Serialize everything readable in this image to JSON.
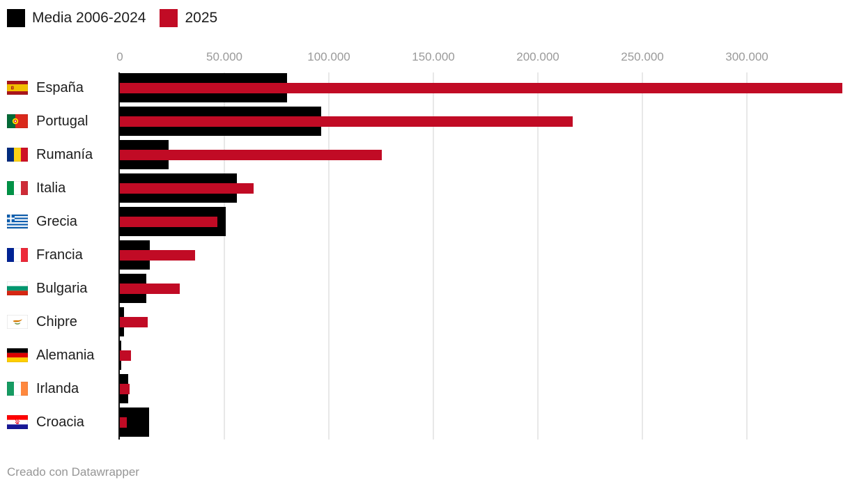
{
  "legend": {
    "items": [
      {
        "label": "Media 2006-2024",
        "color": "#000000"
      },
      {
        "label": "2025",
        "color": "#c10b25"
      }
    ]
  },
  "footer": {
    "credit": "Creado con Datawrapper"
  },
  "chart_data": {
    "type": "bar",
    "orientation": "horizontal",
    "categories": [
      "España",
      "Portugal",
      "Rumanía",
      "Italia",
      "Grecia",
      "Francia",
      "Bulgaria",
      "Chipre",
      "Alemania",
      "Irlanda",
      "Croacia"
    ],
    "flag_icons": [
      "flag-espana-icon",
      "flag-portugal-icon",
      "flag-rumania-icon",
      "flag-italia-icon",
      "flag-grecia-icon",
      "flag-francia-icon",
      "flag-bulgaria-icon",
      "flag-chipre-icon",
      "flag-alemania-icon",
      "flag-irlanda-icon",
      "flag-croacia-icon"
    ],
    "series": [
      {
        "name": "Media 2006-2024",
        "color": "#000000",
        "values": [
          80000,
          96300,
          23300,
          56000,
          50700,
          14300,
          12500,
          2100,
          500,
          4000,
          14000
        ]
      },
      {
        "name": "2025",
        "color": "#c10b25",
        "values": [
          345500,
          216600,
          125300,
          64000,
          46500,
          36000,
          28500,
          13400,
          5300,
          4700,
          3300
        ]
      }
    ],
    "x_tick_values": [
      0,
      50000,
      100000,
      150000,
      200000,
      250000,
      300000
    ],
    "x_tick_labels": [
      "0",
      "50.000",
      "100.000",
      "150.000",
      "200.000",
      "250.000",
      "300.000"
    ],
    "xlim": [
      0,
      349300
    ],
    "grid": true,
    "legend_position": "top-left"
  }
}
